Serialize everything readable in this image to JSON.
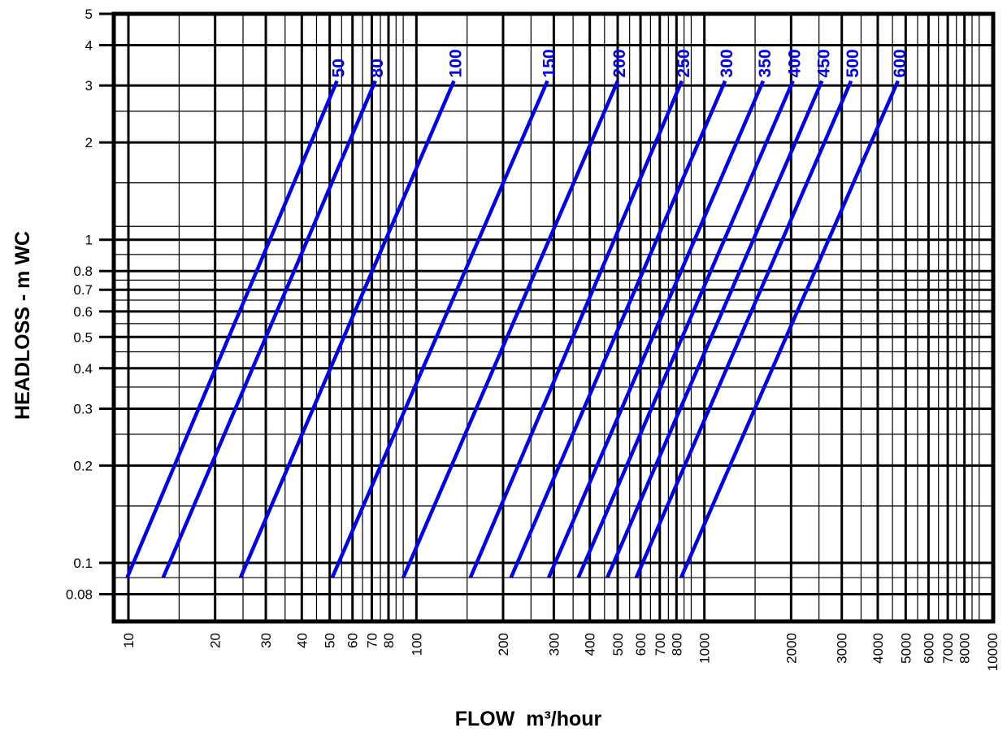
{
  "chart_data": {
    "type": "line",
    "xlabel": "FLOW  m³/hour",
    "ylabel": "HEADLOSS - m WC",
    "x_scale": "log",
    "y_scale": "log",
    "xlim": [
      9.5,
      10000
    ],
    "ylim": [
      0.07,
      5
    ],
    "grid": true,
    "x_ticks": [
      10,
      20,
      30,
      40,
      50,
      60,
      70,
      80,
      100,
      200,
      300,
      400,
      500,
      600,
      700,
      800,
      1000,
      2000,
      3000,
      4000,
      5000,
      6000,
      7000,
      8000,
      10000
    ],
    "y_ticks": [
      0.08,
      0.1,
      0.2,
      0.3,
      0.4,
      0.5,
      0.6,
      0.7,
      0.8,
      1,
      2,
      3,
      4,
      5
    ],
    "line_color": "#0000ee",
    "series": [
      {
        "name": "50",
        "points": [
          [
            9.9,
            0.09
          ],
          [
            53,
            3.1
          ]
        ]
      },
      {
        "name": "80",
        "points": [
          [
            13.2,
            0.09
          ],
          [
            72,
            3.1
          ]
        ]
      },
      {
        "name": "100",
        "points": [
          [
            24.5,
            0.09
          ],
          [
            135,
            3.1
          ]
        ]
      },
      {
        "name": "150",
        "points": [
          [
            51,
            0.09
          ],
          [
            285,
            3.1
          ]
        ]
      },
      {
        "name": "200",
        "points": [
          [
            90,
            0.09
          ],
          [
            500,
            3.1
          ]
        ]
      },
      {
        "name": "250",
        "points": [
          [
            154,
            0.09
          ],
          [
            835,
            3.1
          ]
        ]
      },
      {
        "name": "300",
        "points": [
          [
            213,
            0.09
          ],
          [
            1180,
            3.1
          ]
        ]
      },
      {
        "name": "350",
        "points": [
          [
            288,
            0.09
          ],
          [
            1600,
            3.1
          ]
        ]
      },
      {
        "name": "400",
        "points": [
          [
            365,
            0.09
          ],
          [
            2030,
            3.1
          ]
        ]
      },
      {
        "name": "450",
        "points": [
          [
            460,
            0.09
          ],
          [
            2560,
            3.1
          ]
        ]
      },
      {
        "name": "500",
        "points": [
          [
            580,
            0.09
          ],
          [
            3230,
            3.1
          ]
        ]
      },
      {
        "name": "600",
        "points": [
          [
            830,
            0.09
          ],
          [
            4700,
            3.1
          ]
        ]
      }
    ]
  }
}
